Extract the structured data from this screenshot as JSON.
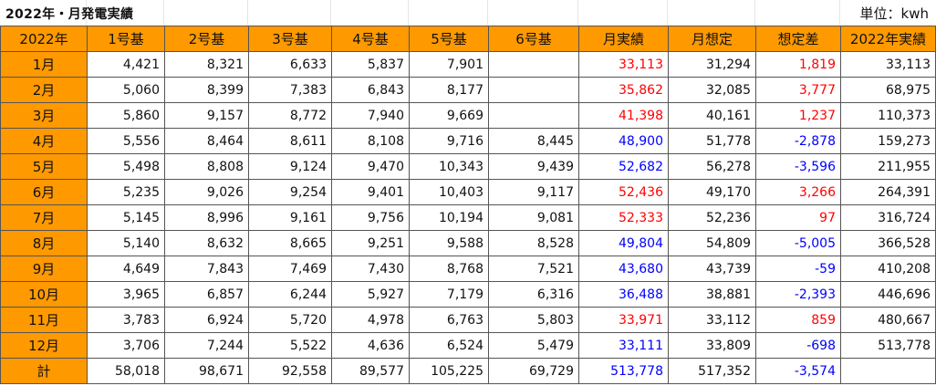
{
  "title": "2022年・月発電実績",
  "unit": "単位：kwh",
  "headers": [
    "2022年",
    "1号基",
    "2号基",
    "3号基",
    "4号基",
    "5号基",
    "6号基",
    "月実績",
    "月想定",
    "想定差",
    "2022年実績"
  ],
  "colors": {
    "header_bg": "#ff9900",
    "over": "#ff0000",
    "under": "#0000ff"
  },
  "rows": [
    {
      "month": "1月",
      "c1": "4,421",
      "c2": "8,321",
      "c3": "6,633",
      "c4": "5,837",
      "c5": "7,901",
      "c6": "",
      "actual": "33,113",
      "plan": "31,294",
      "diff": "1,819",
      "ytd": "33,113",
      "sign": "over"
    },
    {
      "month": "2月",
      "c1": "5,060",
      "c2": "8,399",
      "c3": "7,383",
      "c4": "6,843",
      "c5": "8,177",
      "c6": "",
      "actual": "35,862",
      "plan": "32,085",
      "diff": "3,777",
      "ytd": "68,975",
      "sign": "over"
    },
    {
      "month": "3月",
      "c1": "5,860",
      "c2": "9,157",
      "c3": "8,772",
      "c4": "7,940",
      "c5": "9,669",
      "c6": "",
      "actual": "41,398",
      "plan": "40,161",
      "diff": "1,237",
      "ytd": "110,373",
      "sign": "over"
    },
    {
      "month": "4月",
      "c1": "5,556",
      "c2": "8,464",
      "c3": "8,611",
      "c4": "8,108",
      "c5": "9,716",
      "c6": "8,445",
      "actual": "48,900",
      "plan": "51,778",
      "diff": "-2,878",
      "ytd": "159,273",
      "sign": "under"
    },
    {
      "month": "5月",
      "c1": "5,498",
      "c2": "8,808",
      "c3": "9,124",
      "c4": "9,470",
      "c5": "10,343",
      "c6": "9,439",
      "actual": "52,682",
      "plan": "56,278",
      "diff": "-3,596",
      "ytd": "211,955",
      "sign": "under"
    },
    {
      "month": "6月",
      "c1": "5,235",
      "c2": "9,026",
      "c3": "9,254",
      "c4": "9,401",
      "c5": "10,403",
      "c6": "9,117",
      "actual": "52,436",
      "plan": "49,170",
      "diff": "3,266",
      "ytd": "264,391",
      "sign": "over"
    },
    {
      "month": "7月",
      "c1": "5,145",
      "c2": "8,996",
      "c3": "9,161",
      "c4": "9,756",
      "c5": "10,194",
      "c6": "9,081",
      "actual": "52,333",
      "plan": "52,236",
      "diff": "97",
      "ytd": "316,724",
      "sign": "over"
    },
    {
      "month": "8月",
      "c1": "5,140",
      "c2": "8,632",
      "c3": "8,665",
      "c4": "9,251",
      "c5": "9,588",
      "c6": "8,528",
      "actual": "49,804",
      "plan": "54,809",
      "diff": "-5,005",
      "ytd": "366,528",
      "sign": "under"
    },
    {
      "month": "9月",
      "c1": "4,649",
      "c2": "7,843",
      "c3": "7,469",
      "c4": "7,430",
      "c5": "8,768",
      "c6": "7,521",
      "actual": "43,680",
      "plan": "43,739",
      "diff": "-59",
      "ytd": "410,208",
      "sign": "under"
    },
    {
      "month": "10月",
      "c1": "3,965",
      "c2": "6,857",
      "c3": "6,244",
      "c4": "5,927",
      "c5": "7,179",
      "c6": "6,316",
      "actual": "36,488",
      "plan": "38,881",
      "diff": "-2,393",
      "ytd": "446,696",
      "sign": "under"
    },
    {
      "month": "11月",
      "c1": "3,783",
      "c2": "6,924",
      "c3": "5,720",
      "c4": "4,978",
      "c5": "6,763",
      "c6": "5,803",
      "actual": "33,971",
      "plan": "33,112",
      "diff": "859",
      "ytd": "480,667",
      "sign": "over"
    },
    {
      "month": "12月",
      "c1": "3,706",
      "c2": "7,244",
      "c3": "5,522",
      "c4": "4,636",
      "c5": "6,524",
      "c6": "5,479",
      "actual": "33,111",
      "plan": "33,809",
      "diff": "-698",
      "ytd": "513,778",
      "sign": "under"
    }
  ],
  "total": {
    "label": "計",
    "c1": "58,018",
    "c2": "98,671",
    "c3": "92,558",
    "c4": "89,577",
    "c5": "105,225",
    "c6": "69,729",
    "actual": "513,778",
    "plan": "517,352",
    "diff": "-3,574",
    "ytd": "",
    "sign": "under"
  }
}
